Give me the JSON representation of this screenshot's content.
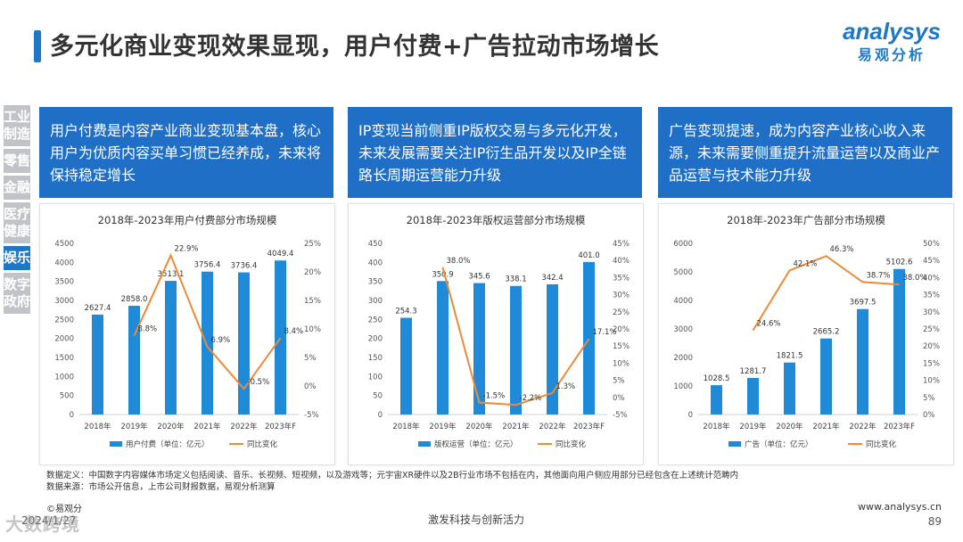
{
  "header": {
    "title": "多元化商业变现效果显现，用户付费+广告拉动市场增长"
  },
  "logo": {
    "prefix": "a",
    "text": "nalysys",
    "cn": "易观分析"
  },
  "sidebar": {
    "items": [
      {
        "label": "工业制造",
        "active": false
      },
      {
        "label": "零售",
        "active": false
      },
      {
        "label": "金融",
        "active": false
      },
      {
        "label": "医疗健康",
        "active": false
      },
      {
        "label": "娱乐",
        "active": true
      },
      {
        "label": "数字政府",
        "active": false
      }
    ]
  },
  "panels": [
    {
      "text": "用户付费是内容产业商业变现基本盘，核心用户为优质内容买单习惯已经养成，未来将保持稳定增长"
    },
    {
      "text": "IP变现当前侧重IP版权交易与多元化开发，未来发展需要关注IP衍生品开发以及IP全链路长周期运营能力升级"
    },
    {
      "text": "广告变现提速，成为内容产业核心收入来源，未来需要侧重提升流量运营以及商业产品运营与技术能力升级"
    }
  ],
  "colors": {
    "bar": "#1f8bd8",
    "line": "#ee8a35",
    "accent": "#1e78c8"
  },
  "chart_data": [
    {
      "type": "bar",
      "title": "2018年-2023年用户付费部分市场规模",
      "categories": [
        "2018年",
        "2019年",
        "2020年",
        "2021年",
        "2022年",
        "2023年F"
      ],
      "series": [
        {
          "name": "用户付费（单位：亿元）",
          "values": [
            2627.4,
            2858.0,
            3513.1,
            3756.4,
            3736.4,
            4049.4
          ],
          "value_labels": [
            "2627.4",
            "2858.0",
            "3513.1",
            "3756.4",
            "3736.4",
            "4049.4"
          ]
        },
        {
          "name": "同比变化",
          "type": "line",
          "axis": "right",
          "values": [
            null,
            8.8,
            22.9,
            6.9,
            -0.5,
            8.4
          ],
          "value_labels": [
            "",
            "8.8%",
            "22.9%",
            "6.9%",
            "-0.5%",
            "8.4%"
          ]
        }
      ],
      "ylim": [
        0,
        4500
      ],
      "yticks": [
        "0",
        "500",
        "1000",
        "1500",
        "2000",
        "2500",
        "3000",
        "3500",
        "4000",
        "4500"
      ],
      "y2lim": [
        -5,
        25
      ],
      "y2ticks": [
        "-5%",
        "0%",
        "5%",
        "10%",
        "15%",
        "20%",
        "25%"
      ]
    },
    {
      "type": "bar",
      "title": "2018年-2023年版权运营部分市场规模",
      "categories": [
        "2018年",
        "2019年",
        "2020年",
        "2021年",
        "2022年",
        "2023年F"
      ],
      "series": [
        {
          "name": "版权运营（单位：亿元）",
          "values": [
            254.3,
            350.9,
            345.6,
            338.1,
            342.4,
            401.0
          ],
          "value_labels": [
            "254.3",
            "350.9",
            "345.6",
            "338.1",
            "342.4",
            "401.0"
          ]
        },
        {
          "name": "同比变化",
          "type": "line",
          "axis": "right",
          "values": [
            null,
            38.0,
            -1.5,
            -2.2,
            1.3,
            17.1
          ],
          "value_labels": [
            "",
            "38.0%",
            "-1.5%",
            "-2.2%",
            "1.3%",
            "17.1%"
          ]
        }
      ],
      "ylim": [
        0,
        450
      ],
      "yticks": [
        "0",
        "50",
        "100",
        "150",
        "200",
        "250",
        "300",
        "350",
        "400",
        "450"
      ],
      "y2lim": [
        -5,
        45
      ],
      "y2ticks": [
        "-5%",
        "0%",
        "5%",
        "10%",
        "15%",
        "20%",
        "25%",
        "30%",
        "35%",
        "40%",
        "45%"
      ]
    },
    {
      "type": "bar",
      "title": "2018年-2023年广告部分市场规模",
      "categories": [
        "2018年",
        "2019年",
        "2020年",
        "2021年",
        "2022年",
        "2023年F"
      ],
      "series": [
        {
          "name": "广告（单位：亿元）",
          "values": [
            1028.5,
            1281.7,
            1821.5,
            2665.2,
            3697.5,
            5102.6
          ],
          "value_labels": [
            "1028.5",
            "1281.7",
            "1821.5",
            "2665.2",
            "3697.5",
            "5102.6"
          ]
        },
        {
          "name": "同比变化",
          "type": "line",
          "axis": "right",
          "values": [
            null,
            24.6,
            42.1,
            46.3,
            38.7,
            38.0
          ],
          "value_labels": [
            "",
            "24.6%",
            "42.1%",
            "46.3%",
            "38.7%",
            "38.0%"
          ]
        }
      ],
      "ylim": [
        0,
        6000
      ],
      "yticks": [
        "0",
        "1000",
        "2000",
        "3000",
        "4000",
        "5000",
        "6000"
      ],
      "y2lim": [
        0,
        50
      ],
      "y2ticks": [
        "0%",
        "5%",
        "10%",
        "15%",
        "20%",
        "25%",
        "30%",
        "35%",
        "40%",
        "45%",
        "50%"
      ]
    }
  ],
  "footer": {
    "definition": "数据定义：中国数字内容媒体市场定义包括阅读、音乐、长视频、短视频，以及游戏等；元宇宙XR硬件以及2B行业市场不包括在内，其他面向用户侧应用部分已经包含在上述统计范畴内",
    "source": "数据来源：市场公开信息，上市公司财报数据，易观分析测算",
    "copyright": "©易观分",
    "date": "2024/1/27",
    "watermark": "大数跨境",
    "slogan": "激发科技与创新活力",
    "url": "www.analysys.cn",
    "page": "89"
  }
}
